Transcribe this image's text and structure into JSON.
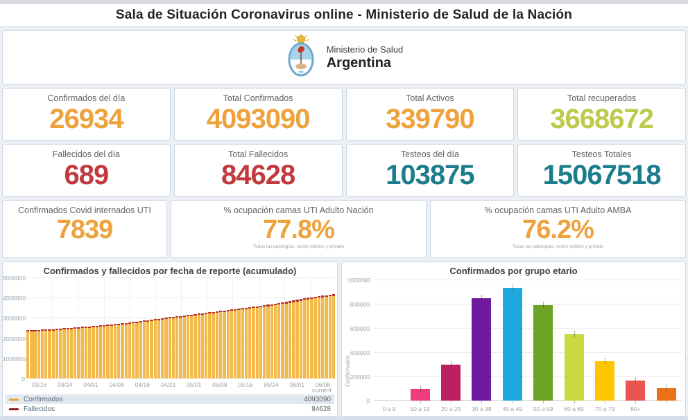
{
  "page": {
    "title": "Sala de Situación Coronavirus online - Ministerio de Salud de la Nación"
  },
  "header": {
    "ministry_line1": "Ministerio de Salud",
    "ministry_line2": "Argentina",
    "logo_icon": "argentina-coat-of-arms"
  },
  "colors": {
    "orange": "#eea23c",
    "green": "#bccb4b",
    "red": "#c23a3d",
    "teal": "#1b7d8b",
    "card_border": "#ccd7e0",
    "legend_highlight": "#e2e8ef"
  },
  "kpis": {
    "rows": [
      {
        "cards": [
          {
            "label": "Confirmados del día",
            "value": "26934",
            "color": "#eea23c"
          },
          {
            "label": "Total Confirmados",
            "value": "4093090",
            "color": "#eea23c"
          },
          {
            "label": "Total Activos",
            "value": "339790",
            "color": "#eea23c"
          },
          {
            "label": "Total recuperados",
            "value": "3668672",
            "color": "#bccb4b"
          }
        ]
      },
      {
        "cards": [
          {
            "label": "Fallecidos del día",
            "value": "689",
            "color": "#c23a3d"
          },
          {
            "label": "Total Fallecidos",
            "value": "84628",
            "color": "#c23a3d"
          },
          {
            "label": "Testeos del día",
            "value": "103875",
            "color": "#1b7d8b"
          },
          {
            "label": "Testeos Totales",
            "value": "15067518",
            "color": "#1b7d8b"
          }
        ]
      },
      {
        "cards": [
          {
            "label": "Confirmados Covid internados UTI",
            "value": "7839",
            "color": "#eea23c",
            "note": ""
          },
          {
            "label": "% ocupación camas UTI Adulto Nación",
            "value": "77.8%",
            "color": "#eea23c",
            "note": "Todas las patologías, sector público y privado"
          },
          {
            "label": "% ocupación camas UTI Adulto AMBA",
            "value": "76.2%",
            "color": "#eea23c",
            "note": "Todas las patologías, sector público y privado"
          }
        ]
      }
    ]
  },
  "chart_data": [
    {
      "type": "bar",
      "stacked": true,
      "title": "Confirmados y fallecidos por fecha de reporte (acumulado)",
      "xlabel": "",
      "ylabel": "",
      "ylim": [
        0,
        5000000
      ],
      "y_tick_labels": [
        "5000000",
        "4000000",
        "3000000",
        "2000000",
        "1000000",
        "0"
      ],
      "x_tick_labels": [
        "03/16",
        "03/24",
        "04/01",
        "04/08",
        "04/16",
        "04/23",
        "05/01",
        "05/08",
        "05/16",
        "05/24",
        "06/01",
        "06/08"
      ],
      "grid": true,
      "bar_count": 85,
      "legend": {
        "header": "current",
        "position": "bottom-table",
        "selected_row": "Confirmados"
      },
      "series": [
        {
          "name": "Confirmados",
          "color": "#f1ba4b",
          "current": "4093090",
          "values_at_ticks": [
            2330000,
            2400000,
            2500000,
            2610000,
            2770000,
            2950000,
            3120000,
            3290000,
            3460000,
            3640000,
            3900000,
            4093090
          ]
        },
        {
          "name": "Fallecidos",
          "color": "#b63327",
          "current": "84628",
          "values_at_ticks": [
            54500,
            56200,
            58000,
            59700,
            61600,
            64100,
            66700,
            69300,
            72300,
            75700,
            80400,
            84628
          ]
        }
      ]
    },
    {
      "type": "bar",
      "title": "Confirmados por grupo etario",
      "xlabel": "",
      "ylabel": "Confirmados",
      "ylim": [
        0,
        1000000
      ],
      "y_tick_labels": [
        "1000000",
        "800000",
        "600000",
        "400000",
        "200000",
        "0"
      ],
      "grid": true,
      "categories": [
        "0 a 9",
        "10 a 19",
        "20 a 29",
        "30 a 39",
        "40 a 49",
        "50 a 59",
        "60 a 69",
        "70 a 79",
        "80+"
      ],
      "values": [
        95000,
        300000,
        845000,
        930000,
        790000,
        550000,
        325000,
        165000,
        105000
      ],
      "colors": [
        "#ee3d7f",
        "#bc2060",
        "#6f1ba0",
        "#1fa7e0",
        "#6da424",
        "#c9d93e",
        "#fdc500",
        "#e85552",
        "#ea7117"
      ],
      "layout_hint": "bars drawn one slot to the right of their labels; leftmost label slot has no bar, rightmost bar has no label"
    }
  ]
}
